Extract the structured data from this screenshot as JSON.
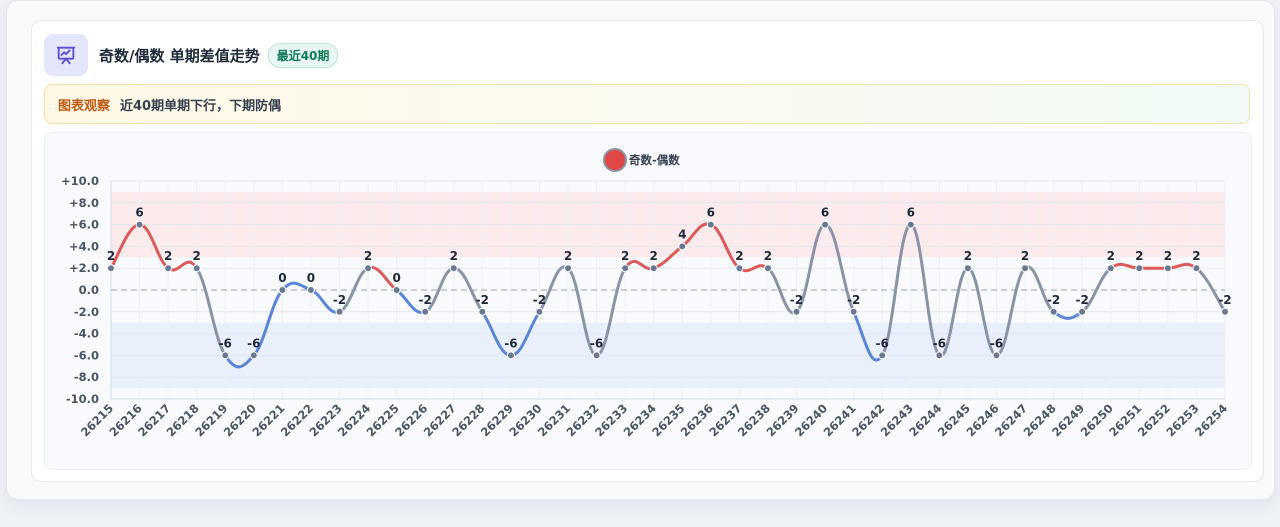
{
  "header": {
    "title": "奇数/偶数 单期差值走势",
    "badge": "最近40期",
    "icon": "presentation-chart-icon"
  },
  "insight": {
    "label": "图表观察",
    "text": "近40期单期下行，下期防偶"
  },
  "colors": {
    "positive_line": "#dc5a5a",
    "negative_line": "#5b86d6",
    "neutral_line": "#8a94a6",
    "positive_band": "#fbe7ea",
    "negative_band": "#e6edfb",
    "point": "#6b7891",
    "legend_dot": "#e04848"
  },
  "chart_data": {
    "type": "line",
    "legend": [
      "奇数-偶数"
    ],
    "legend_position": "top-center",
    "x": [
      "26215",
      "26216",
      "26217",
      "26218",
      "26219",
      "26220",
      "26221",
      "26222",
      "26223",
      "26224",
      "26225",
      "26226",
      "26227",
      "26228",
      "26229",
      "26230",
      "26231",
      "26232",
      "26233",
      "26234",
      "26235",
      "26236",
      "26237",
      "26238",
      "26239",
      "26240",
      "26241",
      "26242",
      "26243",
      "26244",
      "26245",
      "26246",
      "26247",
      "26248",
      "26249",
      "26250",
      "26251",
      "26252",
      "26253",
      "26254"
    ],
    "series": [
      {
        "name": "奇数-偶数",
        "values": [
          2,
          6,
          2,
          2,
          -6,
          -6,
          0,
          0,
          -2,
          2,
          0,
          -2,
          2,
          -2,
          -6,
          -2,
          2,
          -6,
          2,
          2,
          4,
          6,
          2,
          2,
          -2,
          6,
          -2,
          -6,
          6,
          -6,
          2,
          -6,
          2,
          -2,
          -2,
          2,
          2,
          2,
          2,
          -2
        ]
      }
    ],
    "data_labels": [
      "2",
      "6",
      "2",
      "2",
      "-6",
      "-6",
      "0",
      "0",
      "-2",
      "2",
      "0",
      "-2",
      "2",
      "-2",
      "-6",
      "-2",
      "2",
      "-6",
      "2",
      "2",
      "4",
      "6",
      "2",
      "2",
      "-2",
      "6",
      "-2",
      "-6",
      "6",
      "-6",
      "2",
      "-6",
      "2",
      "-2",
      "-2",
      "2",
      "2",
      "2",
      "2",
      "-2"
    ],
    "yticks": [
      "+10.0",
      "+8.0",
      "+6.0",
      "+4.0",
      "+2.0",
      "0.0",
      "-2.0",
      "-4.0",
      "-6.0",
      "-8.0",
      "-10.0"
    ],
    "ylim": [
      -10,
      10
    ],
    "bands": [
      {
        "from": 3,
        "to": 9,
        "kind": "positive"
      },
      {
        "from": -9,
        "to": -3,
        "kind": "negative"
      }
    ],
    "zero_line": "dashed",
    "grid": true
  }
}
